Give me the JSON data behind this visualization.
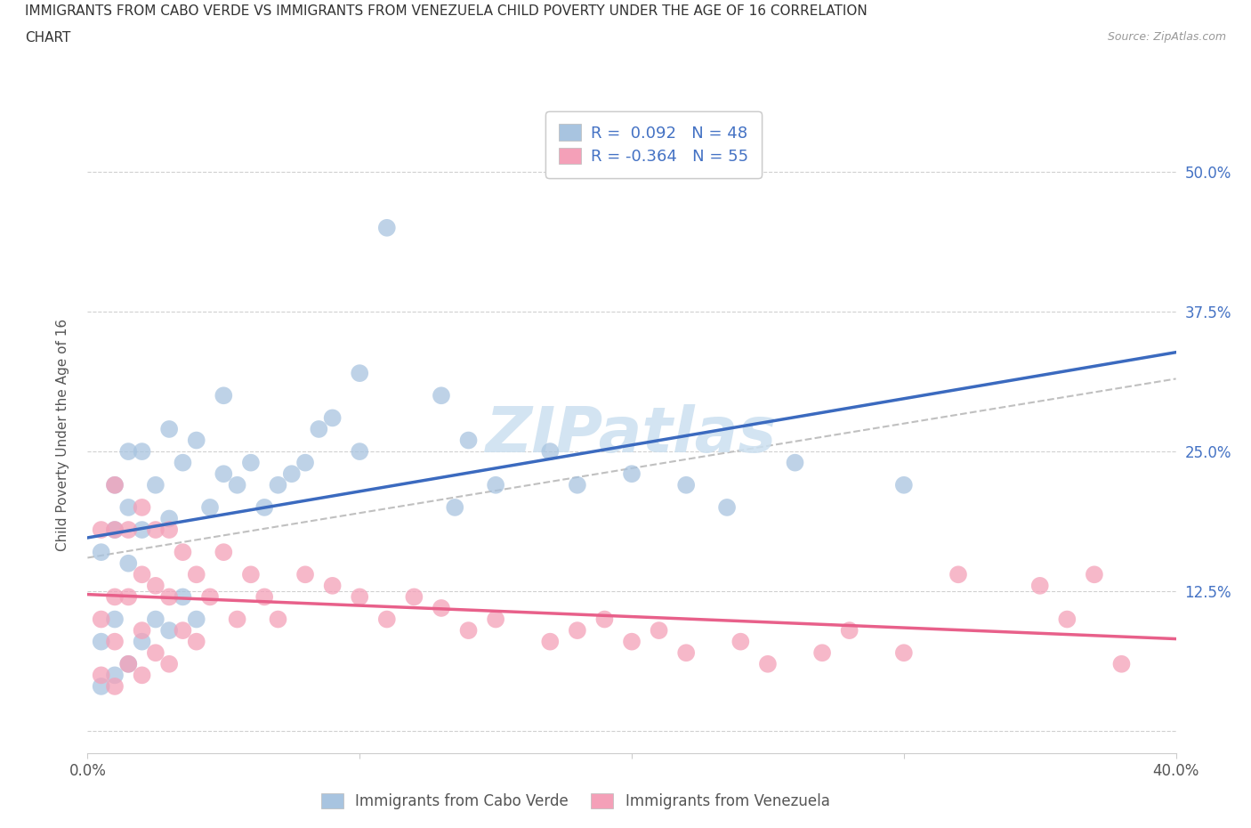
{
  "title_line1": "IMMIGRANTS FROM CABO VERDE VS IMMIGRANTS FROM VENEZUELA CHILD POVERTY UNDER THE AGE OF 16 CORRELATION",
  "title_line2": "CHART",
  "source": "Source: ZipAtlas.com",
  "ylabel": "Child Poverty Under the Age of 16",
  "xlim": [
    0.0,
    0.4
  ],
  "ylim": [
    -0.02,
    0.55
  ],
  "y_ticks": [
    0.0,
    0.125,
    0.25,
    0.375,
    0.5
  ],
  "y_tick_labels": [
    "",
    "12.5%",
    "25.0%",
    "37.5%",
    "50.0%"
  ],
  "cabo_verde_R": 0.092,
  "cabo_verde_N": 48,
  "venezuela_R": -0.364,
  "venezuela_N": 55,
  "cabo_verde_color": "#a8c4e0",
  "venezuela_color": "#f4a0b8",
  "cabo_verde_line_color": "#3b6abf",
  "venezuela_line_color": "#e8608a",
  "watermark_color": "#cce0f0",
  "cabo_verde_x": [
    0.005,
    0.005,
    0.005,
    0.01,
    0.01,
    0.01,
    0.01,
    0.015,
    0.015,
    0.015,
    0.015,
    0.02,
    0.02,
    0.02,
    0.025,
    0.025,
    0.03,
    0.03,
    0.03,
    0.035,
    0.035,
    0.04,
    0.04,
    0.045,
    0.05,
    0.05,
    0.055,
    0.06,
    0.065,
    0.07,
    0.075,
    0.08,
    0.085,
    0.09,
    0.1,
    0.1,
    0.11,
    0.13,
    0.135,
    0.14,
    0.15,
    0.17,
    0.18,
    0.2,
    0.22,
    0.235,
    0.26,
    0.3
  ],
  "cabo_verde_y": [
    0.04,
    0.08,
    0.16,
    0.05,
    0.1,
    0.18,
    0.22,
    0.06,
    0.15,
    0.2,
    0.25,
    0.08,
    0.18,
    0.25,
    0.1,
    0.22,
    0.09,
    0.19,
    0.27,
    0.12,
    0.24,
    0.1,
    0.26,
    0.2,
    0.23,
    0.3,
    0.22,
    0.24,
    0.2,
    0.22,
    0.23,
    0.24,
    0.27,
    0.28,
    0.25,
    0.32,
    0.45,
    0.3,
    0.2,
    0.26,
    0.22,
    0.25,
    0.22,
    0.23,
    0.22,
    0.2,
    0.24,
    0.22
  ],
  "venezuela_x": [
    0.005,
    0.005,
    0.005,
    0.01,
    0.01,
    0.01,
    0.01,
    0.01,
    0.015,
    0.015,
    0.015,
    0.02,
    0.02,
    0.02,
    0.02,
    0.025,
    0.025,
    0.025,
    0.03,
    0.03,
    0.03,
    0.035,
    0.035,
    0.04,
    0.04,
    0.045,
    0.05,
    0.055,
    0.06,
    0.065,
    0.07,
    0.08,
    0.09,
    0.1,
    0.11,
    0.12,
    0.13,
    0.14,
    0.15,
    0.17,
    0.18,
    0.19,
    0.2,
    0.21,
    0.22,
    0.24,
    0.25,
    0.27,
    0.28,
    0.3,
    0.32,
    0.35,
    0.36,
    0.37,
    0.38
  ],
  "venezuela_y": [
    0.05,
    0.1,
    0.18,
    0.04,
    0.08,
    0.12,
    0.18,
    0.22,
    0.06,
    0.12,
    0.18,
    0.05,
    0.09,
    0.14,
    0.2,
    0.07,
    0.13,
    0.18,
    0.06,
    0.12,
    0.18,
    0.09,
    0.16,
    0.08,
    0.14,
    0.12,
    0.16,
    0.1,
    0.14,
    0.12,
    0.1,
    0.14,
    0.13,
    0.12,
    0.1,
    0.12,
    0.11,
    0.09,
    0.1,
    0.08,
    0.09,
    0.1,
    0.08,
    0.09,
    0.07,
    0.08,
    0.06,
    0.07,
    0.09,
    0.07,
    0.14,
    0.13,
    0.1,
    0.14,
    0.06
  ],
  "dash_line_x": [
    0.0,
    0.4
  ],
  "dash_line_y_start": 0.155,
  "dash_line_y_end": 0.315
}
